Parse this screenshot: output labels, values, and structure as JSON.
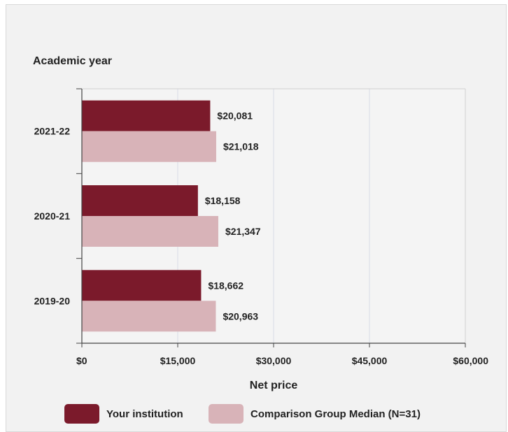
{
  "chart_data": {
    "type": "bar",
    "orientation": "horizontal",
    "title": "",
    "ylabel": "Academic year",
    "xlabel": "Net price",
    "categories": [
      "2021-22",
      "2020-21",
      "2019-20"
    ],
    "series": [
      {
        "name": "Your institution",
        "color": "#7b1a2b",
        "values": [
          20081,
          18158,
          18662
        ],
        "labels": [
          "$20,081",
          "$18,158",
          "$18,662"
        ]
      },
      {
        "name": "Comparison Group Median (N=31)",
        "color": "#d8b3b8",
        "values": [
          21018,
          21347,
          20963
        ],
        "labels": [
          "$21,018",
          "$21,347",
          "$20,963"
        ]
      }
    ],
    "xlim": [
      0,
      60000
    ],
    "xticks": [
      0,
      15000,
      30000,
      45000,
      60000
    ],
    "xtick_labels": [
      "$0",
      "$15,000",
      "$30,000",
      "$45,000",
      "$60,000"
    ],
    "grid": "vertical",
    "legend_position": "bottom"
  }
}
